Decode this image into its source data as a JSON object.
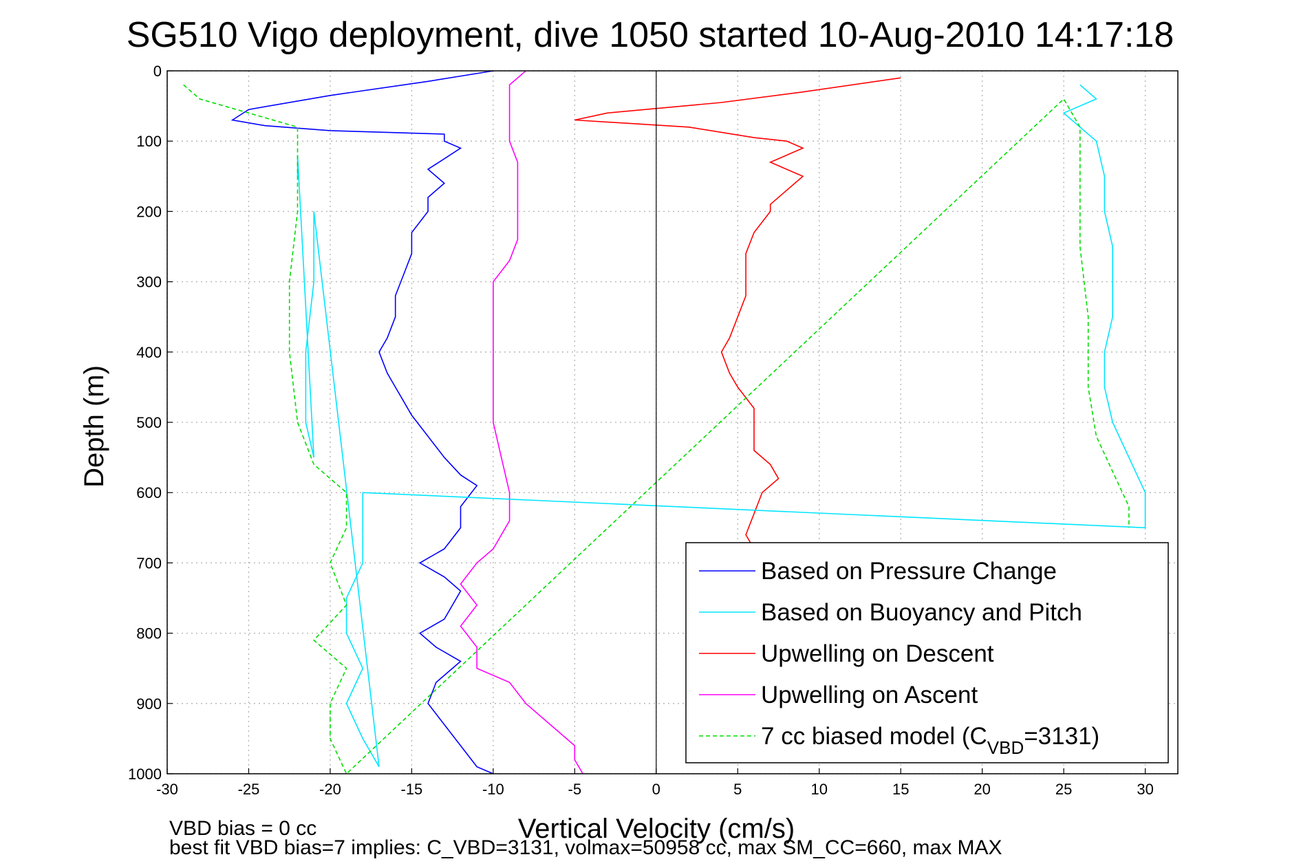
{
  "chart_data": {
    "type": "line",
    "title": "SG510 Vigo deployment, dive 1050 started 10-Aug-2010 14:17:18",
    "xlabel": "Vertical Velocity (cm/s)",
    "ylabel": "Depth (m)",
    "xlim": [
      -30,
      32
    ],
    "ylim": [
      0,
      1000
    ],
    "y_reversed": true,
    "grid": true,
    "x_ticks": [
      "-30",
      "-25",
      "-20",
      "-15",
      "-10",
      "-5",
      "0",
      "5",
      "10",
      "15",
      "20",
      "25",
      "30"
    ],
    "y_ticks": [
      "0",
      "100",
      "200",
      "300",
      "400",
      "500",
      "600",
      "700",
      "800",
      "900",
      "1000"
    ],
    "legend_position": "bottom-right",
    "series": [
      {
        "name": "Based on Pressure Change",
        "color": "#0000ff",
        "style": "solid",
        "points": [
          [
            -10,
            0
          ],
          [
            -14,
            15
          ],
          [
            -20,
            35
          ],
          [
            -25,
            55
          ],
          [
            -26,
            70
          ],
          [
            -24,
            78
          ],
          [
            -20,
            85
          ],
          [
            -13,
            90
          ],
          [
            -13,
            100
          ],
          [
            -12,
            110
          ],
          [
            -13,
            125
          ],
          [
            -14,
            140
          ],
          [
            -13,
            160
          ],
          [
            -14,
            180
          ],
          [
            -14,
            200
          ],
          [
            -15,
            230
          ],
          [
            -15,
            260
          ],
          [
            -15.5,
            290
          ],
          [
            -16,
            320
          ],
          [
            -16,
            350
          ],
          [
            -16.5,
            380
          ],
          [
            -17,
            400
          ],
          [
            -16.5,
            430
          ],
          [
            -16,
            450
          ],
          [
            -15.5,
            470
          ],
          [
            -15,
            490
          ],
          [
            -14,
            520
          ],
          [
            -13,
            550
          ],
          [
            -12,
            575
          ],
          [
            -11,
            590
          ],
          [
            -12,
            620
          ],
          [
            -12,
            650
          ],
          [
            -13,
            680
          ],
          [
            -14.5,
            700
          ],
          [
            -13,
            720
          ],
          [
            -12,
            740
          ],
          [
            -13,
            780
          ],
          [
            -14.5,
            800
          ],
          [
            -13.5,
            820
          ],
          [
            -12,
            840
          ],
          [
            -13.5,
            870
          ],
          [
            -14,
            900
          ],
          [
            -13,
            930
          ],
          [
            -12,
            960
          ],
          [
            -11,
            990
          ],
          [
            -10,
            1000
          ]
        ]
      },
      {
        "name": "Upwelling on Descent",
        "color": "#ff0000",
        "style": "solid",
        "points": [
          [
            15,
            10
          ],
          [
            9,
            30
          ],
          [
            4,
            45
          ],
          [
            -3,
            60
          ],
          [
            -5,
            70
          ],
          [
            2,
            80
          ],
          [
            6,
            95
          ],
          [
            8,
            100
          ],
          [
            9,
            110
          ],
          [
            7,
            130
          ],
          [
            9,
            150
          ],
          [
            8,
            170
          ],
          [
            7,
            190
          ],
          [
            7,
            200
          ],
          [
            6,
            230
          ],
          [
            5.5,
            260
          ],
          [
            5.5,
            290
          ],
          [
            5.5,
            320
          ],
          [
            5,
            350
          ],
          [
            4.5,
            380
          ],
          [
            4,
            400
          ],
          [
            4.5,
            430
          ],
          [
            5,
            450
          ],
          [
            6,
            480
          ],
          [
            6,
            510
          ],
          [
            6,
            540
          ],
          [
            7,
            560
          ],
          [
            7.5,
            580
          ],
          [
            6.5,
            600
          ],
          [
            6,
            630
          ],
          [
            5.5,
            660
          ],
          [
            6,
            680
          ]
        ]
      },
      {
        "name": "Upwelling on Ascent",
        "color": "#ff00ff",
        "style": "solid",
        "points": [
          [
            -8,
            0
          ],
          [
            -9,
            20
          ],
          [
            -9,
            50
          ],
          [
            -9,
            80
          ],
          [
            -9,
            100
          ],
          [
            -8.5,
            130
          ],
          [
            -8.5,
            160
          ],
          [
            -8.5,
            200
          ],
          [
            -8.5,
            240
          ],
          [
            -9,
            270
          ],
          [
            -10,
            300
          ],
          [
            -10,
            330
          ],
          [
            -10,
            360
          ],
          [
            -10,
            400
          ],
          [
            -10,
            450
          ],
          [
            -10,
            500
          ],
          [
            -9.5,
            550
          ],
          [
            -9,
            600
          ],
          [
            -9,
            640
          ],
          [
            -10,
            680
          ],
          [
            -11,
            700
          ],
          [
            -12,
            730
          ],
          [
            -11,
            760
          ],
          [
            -12,
            790
          ],
          [
            -11,
            820
          ],
          [
            -11,
            850
          ],
          [
            -9,
            870
          ],
          [
            -8,
            900
          ],
          [
            -6.5,
            930
          ],
          [
            -5,
            960
          ],
          [
            -5,
            980
          ],
          [
            -4.5,
            1000
          ]
        ]
      },
      {
        "name": "Based on Buoyancy and Pitch",
        "color": "#00e5ff",
        "style": "solid",
        "points": [
          [
            26,
            20
          ],
          [
            27,
            40
          ],
          [
            25,
            60
          ],
          [
            26,
            80
          ],
          [
            27,
            100
          ],
          [
            27.5,
            150
          ],
          [
            27.5,
            200
          ],
          [
            28,
            250
          ],
          [
            28,
            300
          ],
          [
            28,
            350
          ],
          [
            27.5,
            400
          ],
          [
            27.5,
            450
          ],
          [
            28,
            500
          ],
          [
            29,
            550
          ],
          [
            30,
            600
          ],
          [
            30,
            650
          ],
          [
            -18,
            600
          ],
          [
            -18,
            650
          ],
          [
            -18,
            700
          ],
          [
            -19,
            750
          ],
          [
            -19,
            800
          ],
          [
            -18,
            850
          ],
          [
            -19,
            900
          ],
          [
            -18,
            950
          ],
          [
            -17,
            990
          ],
          [
            -21,
            200
          ],
          [
            -21,
            300
          ],
          [
            -21.5,
            400
          ],
          [
            -21.5,
            500
          ],
          [
            -21,
            550
          ],
          [
            -22,
            120
          ],
          [
            -22,
            150
          ]
        ]
      },
      {
        "name": "7 cc biased model (C_VBD=3131)",
        "color": "#00dd00",
        "style": "dashed",
        "points": [
          [
            -29,
            20
          ],
          [
            -28,
            40
          ],
          [
            -25,
            60
          ],
          [
            -22,
            80
          ],
          [
            -22,
            120
          ],
          [
            -22,
            160
          ],
          [
            -22,
            200
          ],
          [
            -22.5,
            300
          ],
          [
            -22.5,
            400
          ],
          [
            -22,
            500
          ],
          [
            -21,
            560
          ],
          [
            -19,
            600
          ],
          [
            -19,
            650
          ],
          [
            -20,
            700
          ],
          [
            -19,
            760
          ],
          [
            -21,
            810
          ],
          [
            -19,
            850
          ],
          [
            -20,
            900
          ],
          [
            -20,
            950
          ],
          [
            -19,
            1000
          ],
          [
            25,
            40
          ],
          [
            26,
            80
          ],
          [
            26,
            150
          ],
          [
            26,
            250
          ],
          [
            26.5,
            350
          ],
          [
            26.5,
            450
          ],
          [
            27,
            520
          ],
          [
            28,
            570
          ],
          [
            29,
            620
          ],
          [
            29,
            650
          ]
        ]
      }
    ],
    "annotations": [
      "VBD bias = 0 cc",
      "best fit VBD bias=7 implies: C_VBD=3131, volmax=50958 cc, max SM_CC=660, max MAX"
    ]
  },
  "legend": {
    "items": [
      {
        "label": "Based on Pressure Change",
        "color": "#0000ff",
        "dashed": false
      },
      {
        "label": "Based on Buoyancy and Pitch",
        "color": "#00e5ff",
        "dashed": false
      },
      {
        "label": "Upwelling on Descent",
        "color": "#ff0000",
        "dashed": false
      },
      {
        "label": "Upwelling on Ascent",
        "color": "#ff00ff",
        "dashed": false
      },
      {
        "label": "7 cc biased model (C",
        "sub": "VBD",
        "tail": "=3131)",
        "color": "#00dd00",
        "dashed": true
      }
    ]
  }
}
